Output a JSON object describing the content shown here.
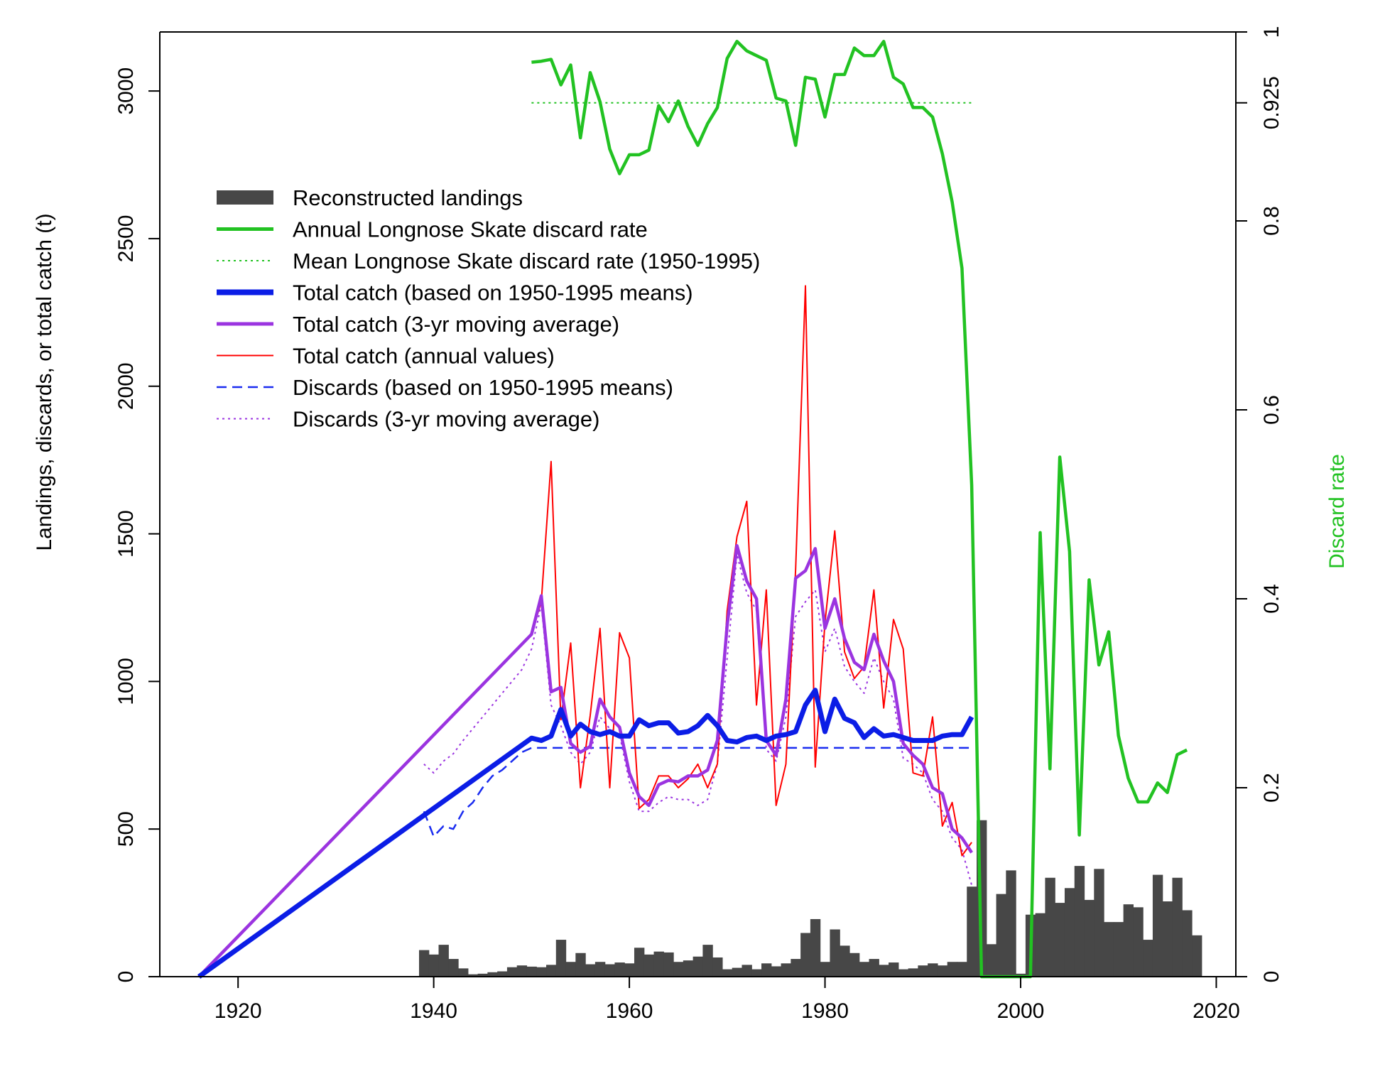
{
  "chart_data": {
    "type": "line",
    "xlim": [
      1912,
      2022
    ],
    "ylim": [
      0,
      3200
    ],
    "y2lim": [
      0,
      1
    ],
    "x_ticks": [
      1920,
      1940,
      1960,
      1980,
      2000,
      2020
    ],
    "y_ticks": [
      0,
      500,
      1000,
      1500,
      2000,
      2500,
      3000
    ],
    "y2_ticks": [
      0,
      0.2,
      0.4,
      0.6,
      0.8,
      0.925,
      1
    ],
    "x_tick_labels": [
      "1920",
      "1940",
      "1960",
      "1980",
      "2000",
      "2020"
    ],
    "y_tick_labels": [
      "0",
      "500",
      "1000",
      "1500",
      "2000",
      "2500",
      "3000"
    ],
    "y2_tick_labels": [
      "0",
      "0.2",
      "0.4",
      "0.6",
      "0.8",
      "0.925",
      "1"
    ],
    "ylabel": "Landings, discards, or total catch (t)",
    "y2label": "Discard rate",
    "grid": false,
    "legend_position": "top-left",
    "colors": {
      "landings": "#474747",
      "discard_rate": "#22c222",
      "total_means": "#0b1de6",
      "total_ma": "#9b34e0",
      "total_annual": "#ff0000",
      "discards_means": "#1a2cf0",
      "discards_ma": "#9b34e0",
      "secondary_axis_label": "#22c222"
    },
    "legend": [
      {
        "label": "Reconstructed landings",
        "kind": "bar",
        "color": "#474747"
      },
      {
        "label": "Annual Longnose Skate discard rate",
        "kind": "line",
        "style": "solid",
        "width": 5,
        "color": "#22c222"
      },
      {
        "label": "Mean Longnose Skate discard rate (1950-1995)",
        "kind": "line",
        "style": "dotted",
        "width": 2,
        "color": "#22c222"
      },
      {
        "label": "Total catch (based on 1950-1995 means)",
        "kind": "line",
        "style": "solid",
        "width": 8,
        "color": "#0b1de6"
      },
      {
        "label": "Total catch (3-yr moving average)",
        "kind": "line",
        "style": "solid",
        "width": 5,
        "color": "#9b34e0"
      },
      {
        "label": "Total catch (annual values)",
        "kind": "line",
        "style": "solid",
        "width": 2,
        "color": "#ff0000"
      },
      {
        "label": "Discards (based on 1950-1995 means)",
        "kind": "line",
        "style": "dashed",
        "width": 2.5,
        "color": "#1a2cf0"
      },
      {
        "label": "Discards (3-yr moving average)",
        "kind": "line",
        "style": "dotted",
        "width": 2,
        "color": "#9b34e0"
      }
    ],
    "landings_bars": {
      "years": [
        1939,
        1940,
        1941,
        1942,
        1943,
        1944,
        1945,
        1946,
        1947,
        1948,
        1949,
        1950,
        1951,
        1952,
        1953,
        1954,
        1955,
        1956,
        1957,
        1958,
        1959,
        1960,
        1961,
        1962,
        1963,
        1964,
        1965,
        1966,
        1967,
        1968,
        1969,
        1970,
        1971,
        1972,
        1973,
        1974,
        1975,
        1976,
        1977,
        1978,
        1979,
        1980,
        1981,
        1982,
        1983,
        1984,
        1985,
        1986,
        1987,
        1988,
        1989,
        1990,
        1991,
        1992,
        1993,
        1994,
        1995,
        1996,
        1997,
        1998,
        1999,
        2000,
        2001,
        2002,
        2003,
        2004,
        2005,
        2006,
        2007,
        2008,
        2009,
        2010,
        2011,
        2012,
        2013,
        2014,
        2015,
        2016,
        2017,
        2018
      ],
      "values": [
        90,
        75,
        108,
        60,
        28,
        8,
        10,
        15,
        18,
        32,
        38,
        34,
        32,
        40,
        125,
        50,
        80,
        42,
        50,
        42,
        48,
        45,
        98,
        75,
        85,
        82,
        50,
        55,
        68,
        108,
        65,
        25,
        30,
        40,
        25,
        45,
        35,
        45,
        60,
        148,
        195,
        50,
        160,
        105,
        80,
        50,
        60,
        40,
        48,
        25,
        28,
        38,
        45,
        38,
        50,
        50,
        305,
        530,
        110,
        280,
        360,
        10,
        210,
        215,
        335,
        250,
        300,
        375,
        260,
        365,
        185,
        185,
        245,
        235,
        125,
        345,
        255,
        335,
        225,
        140
      ]
    },
    "discard_rate": {
      "x": [
        1950,
        1951,
        1952,
        1953,
        1954,
        1955,
        1956,
        1957,
        1958,
        1959,
        1960,
        1961,
        1962,
        1963,
        1964,
        1965,
        1966,
        1967,
        1968,
        1969,
        1970,
        1971,
        1972,
        1973,
        1974,
        1975,
        1976,
        1977,
        1978,
        1979,
        1980,
        1981,
        1982,
        1983,
        1984,
        1985,
        1986,
        1987,
        1988,
        1989,
        1990,
        1991,
        1992,
        1993,
        1994,
        1995,
        1996,
        1997,
        1998,
        1999,
        2000,
        2001,
        2002,
        2003,
        2004,
        2005,
        2006,
        2007,
        2008,
        2009,
        2010,
        2011,
        2012,
        2013,
        2014,
        2015,
        2016,
        2017
      ],
      "y": [
        0.968,
        0.969,
        0.971,
        0.944,
        0.965,
        0.888,
        0.957,
        0.926,
        0.876,
        0.85,
        0.87,
        0.87,
        0.875,
        0.922,
        0.905,
        0.927,
        0.9,
        0.88,
        0.903,
        0.92,
        0.972,
        0.99,
        0.98,
        0.975,
        0.97,
        0.93,
        0.927,
        0.88,
        0.952,
        0.95,
        0.91,
        0.955,
        0.955,
        0.983,
        0.975,
        0.975,
        0.99,
        0.952,
        0.945,
        0.92,
        0.92,
        0.91,
        0.871,
        0.82,
        0.75,
        0.52,
        0.0,
        0.0,
        0.0,
        0.0,
        0.0,
        0.0,
        0.47,
        0.22,
        0.55,
        0.45,
        0.15,
        0.42,
        0.33,
        0.365,
        0.255,
        0.21,
        0.185,
        0.185,
        0.205,
        0.195,
        0.235,
        0.24
      ],
      "mean": 0.925,
      "mean_range": [
        1950,
        1995
      ]
    },
    "series": [
      {
        "key": "total_annual",
        "name": "Total catch (annual values)",
        "x": [
          1950,
          1951,
          1952,
          1953,
          1954,
          1955,
          1956,
          1957,
          1958,
          1959,
          1960,
          1961,
          1962,
          1963,
          1964,
          1965,
          1966,
          1967,
          1968,
          1969,
          1970,
          1971,
          1972,
          1973,
          1974,
          1975,
          1976,
          1977,
          1978,
          1979,
          1980,
          1981,
          1982,
          1983,
          1984,
          1985,
          1986,
          1987,
          1988,
          1989,
          1990,
          1991,
          1992,
          1993,
          1994,
          1995
        ],
        "y": [
          1160,
          1270,
          1745,
          870,
          1130,
          640,
          885,
          1180,
          640,
          1165,
          1080,
          570,
          600,
          680,
          680,
          640,
          670,
          720,
          640,
          720,
          1240,
          1490,
          1610,
          920,
          1310,
          580,
          720,
          1380,
          2340,
          710,
          1200,
          1510,
          1100,
          1010,
          1050,
          1310,
          910,
          1210,
          1110,
          690,
          680,
          880,
          510,
          590,
          410,
          455
        ]
      },
      {
        "key": "total_means",
        "name": "Total catch (based on 1950-1995 means)",
        "x": [
          1916,
          1950,
          1951,
          1952,
          1953,
          1954,
          1955,
          1956,
          1957,
          1958,
          1959,
          1960,
          1961,
          1962,
          1963,
          1964,
          1965,
          1966,
          1967,
          1968,
          1969,
          1970,
          1971,
          1972,
          1973,
          1974,
          1975,
          1976,
          1977,
          1978,
          1979,
          1980,
          1981,
          1982,
          1983,
          1984,
          1985,
          1986,
          1987,
          1988,
          1989,
          1990,
          1991,
          1992,
          1993,
          1994,
          1995
        ],
        "y": [
          0,
          808,
          800,
          815,
          905,
          815,
          855,
          830,
          820,
          830,
          815,
          815,
          870,
          850,
          860,
          860,
          825,
          830,
          850,
          885,
          850,
          800,
          795,
          810,
          815,
          800,
          815,
          820,
          830,
          920,
          970,
          830,
          940,
          875,
          860,
          810,
          840,
          815,
          820,
          810,
          800,
          800,
          800,
          815,
          820,
          820,
          880
        ]
      },
      {
        "key": "total_ma",
        "name": "Total catch (3-yr moving average)",
        "x": [
          1916,
          1950,
          1951,
          1952,
          1953,
          1954,
          1955,
          1956,
          1957,
          1958,
          1959,
          1960,
          1961,
          1962,
          1963,
          1964,
          1965,
          1966,
          1967,
          1968,
          1969,
          1970,
          1971,
          1972,
          1973,
          1974,
          1975,
          1976,
          1977,
          1978,
          1979,
          1980,
          1981,
          1982,
          1983,
          1984,
          1985,
          1986,
          1987,
          1988,
          1989,
          1990,
          1991,
          1992,
          1993,
          1994,
          1995
        ],
        "y": [
          0,
          1160,
          1290,
          965,
          980,
          790,
          760,
          780,
          940,
          880,
          845,
          690,
          610,
          580,
          650,
          665,
          660,
          680,
          680,
          700,
          800,
          1190,
          1460,
          1340,
          1280,
          800,
          750,
          940,
          1350,
          1375,
          1450,
          1180,
          1280,
          1145,
          1065,
          1040,
          1160,
          1070,
          1000,
          790,
          750,
          720,
          640,
          620,
          500,
          470,
          420
        ]
      },
      {
        "key": "discards_means",
        "name": "Discards (based on 1950-1995 means)",
        "x": [
          1939,
          1940,
          1941,
          1942,
          1943,
          1944,
          1945,
          1946,
          1947,
          1948,
          1949,
          1950,
          1995
        ],
        "y": [
          560,
          475,
          510,
          500,
          560,
          590,
          640,
          680,
          700,
          730,
          760,
          775,
          775
        ]
      },
      {
        "key": "discards_ma",
        "name": "Discards (3-yr moving average)",
        "x": [
          1939,
          1940,
          1941,
          1942,
          1943,
          1944,
          1945,
          1946,
          1947,
          1948,
          1949,
          1950,
          1951,
          1952,
          1953,
          1954,
          1955,
          1956,
          1957,
          1958,
          1959,
          1960,
          1961,
          1962,
          1963,
          1964,
          1965,
          1966,
          1967,
          1968,
          1969,
          1970,
          1971,
          1972,
          1973,
          1974,
          1975,
          1976,
          1977,
          1978,
          1979,
          1980,
          1981,
          1982,
          1983,
          1984,
          1985,
          1986,
          1987,
          1988,
          1989,
          1990,
          1991,
          1992,
          1993,
          1994,
          1995
        ],
        "y": [
          720,
          690,
          730,
          755,
          800,
          840,
          880,
          920,
          960,
          1000,
          1040,
          1110,
          1260,
          920,
          850,
          760,
          720,
          760,
          880,
          840,
          820,
          660,
          560,
          560,
          590,
          610,
          600,
          600,
          580,
          600,
          720,
          1080,
          1430,
          1300,
          1240,
          770,
          730,
          880,
          1220,
          1270,
          1310,
          1100,
          1180,
          1050,
          1000,
          960,
          1080,
          1000,
          940,
          740,
          720,
          690,
          600,
          560,
          470,
          430,
          310
        ]
      }
    ]
  }
}
